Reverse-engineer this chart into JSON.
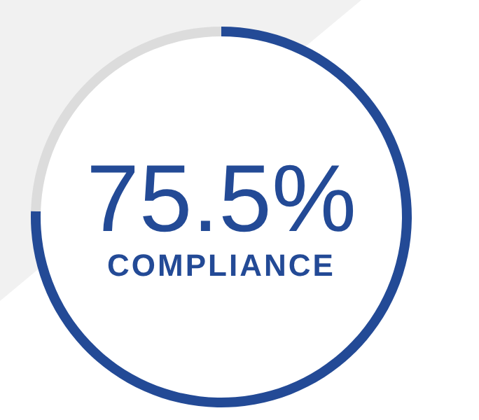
{
  "chart_data": {
    "type": "donut",
    "title": "COMPLIANCE",
    "categories": [
      null,
      null
    ],
    "values": [
      75.5,
      24.5
    ],
    "colors": [
      "#234a96",
      "#dcdcdc"
    ],
    "value_labels": [
      "75.5%",
      null
    ]
  }
}
